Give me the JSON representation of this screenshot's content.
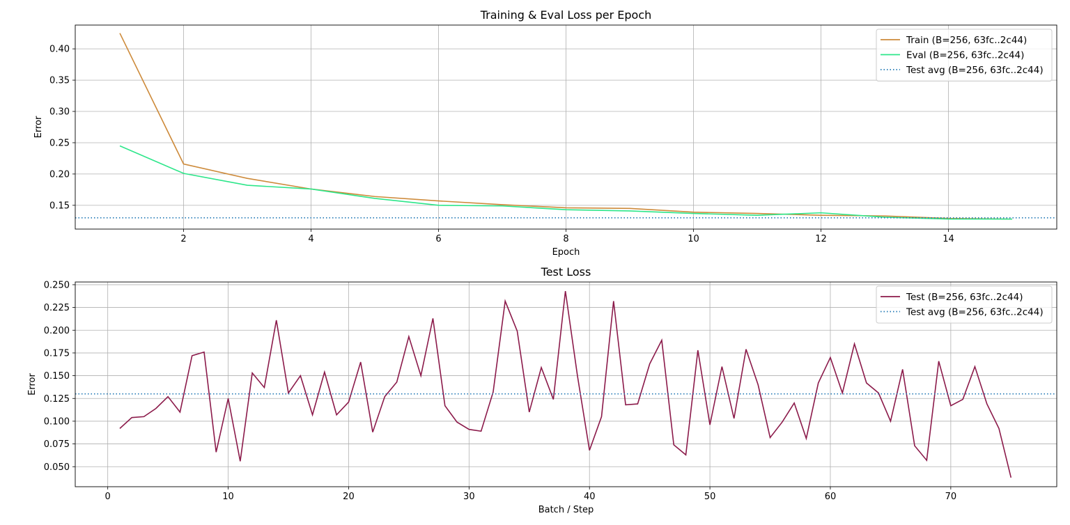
{
  "chart_data": [
    {
      "type": "line",
      "title": "Training & Eval Loss per Epoch",
      "xlabel": "Epoch",
      "ylabel": "Error",
      "xlim": [
        0.3,
        15.7
      ],
      "ylim": [
        0.112,
        0.438
      ],
      "xticks": [
        2,
        4,
        6,
        8,
        10,
        12,
        14
      ],
      "yticks": [
        0.15,
        0.2,
        0.25,
        0.3,
        0.35,
        0.4
      ],
      "ytick_decimals": 2,
      "grid": true,
      "legend": "top-right",
      "x": [
        1,
        2,
        3,
        4,
        5,
        6,
        7,
        8,
        9,
        10,
        11,
        12,
        13,
        14,
        15
      ],
      "series": [
        {
          "name": "Train (B=256, 63fc..2c44)",
          "color": "#cd8a3a",
          "style": "solid",
          "values": [
            0.425,
            0.216,
            0.193,
            0.176,
            0.164,
            0.157,
            0.151,
            0.146,
            0.145,
            0.139,
            0.137,
            0.134,
            0.133,
            0.129,
            0.128
          ]
        },
        {
          "name": "Eval (B=256, 63fc..2c44)",
          "color": "#2de68a",
          "style": "solid",
          "values": [
            0.245,
            0.201,
            0.182,
            0.176,
            0.161,
            0.15,
            0.149,
            0.143,
            0.141,
            0.137,
            0.134,
            0.138,
            0.131,
            0.128,
            0.128
          ]
        },
        {
          "name": "Test avg (B=256, 63fc..2c44)",
          "color": "#1f77b4",
          "style": "dotted",
          "hline": 0.13
        }
      ]
    },
    {
      "type": "line",
      "title": "Test Loss",
      "xlabel": "Batch / Step",
      "ylabel": "Error",
      "xlim": [
        -2.7,
        78.8
      ],
      "ylim": [
        0.028,
        0.253
      ],
      "xticks": [
        0,
        10,
        20,
        30,
        40,
        50,
        60,
        70
      ],
      "yticks": [
        0.05,
        0.075,
        0.1,
        0.125,
        0.15,
        0.175,
        0.2,
        0.225,
        0.25
      ],
      "ytick_decimals": 3,
      "grid": true,
      "legend": "top-right",
      "x": [
        1,
        2,
        3,
        4,
        5,
        6,
        7,
        8,
        9,
        10,
        11,
        12,
        13,
        14,
        15,
        16,
        17,
        18,
        19,
        20,
        21,
        22,
        23,
        24,
        25,
        26,
        27,
        28,
        29,
        30,
        31,
        32,
        33,
        34,
        35,
        36,
        37,
        38,
        39,
        40,
        41,
        42,
        43,
        44,
        45,
        46,
        47,
        48,
        49,
        50,
        51,
        52,
        53,
        54,
        55,
        56,
        57,
        58,
        59,
        60,
        61,
        62,
        63,
        64,
        65,
        66,
        67,
        68,
        69,
        70,
        71,
        72,
        73,
        74,
        75
      ],
      "series": [
        {
          "name": "Test (B=256, 63fc..2c44)",
          "color": "#8b1a4a",
          "style": "solid",
          "values": [
            0.092,
            0.104,
            0.105,
            0.114,
            0.127,
            0.11,
            0.172,
            0.176,
            0.066,
            0.125,
            0.056,
            0.153,
            0.137,
            0.211,
            0.131,
            0.15,
            0.107,
            0.154,
            0.107,
            0.121,
            0.165,
            0.088,
            0.127,
            0.143,
            0.193,
            0.15,
            0.213,
            0.117,
            0.099,
            0.091,
            0.089,
            0.132,
            0.232,
            0.199,
            0.11,
            0.159,
            0.124,
            0.243,
            0.15,
            0.068,
            0.105,
            0.232,
            0.118,
            0.119,
            0.163,
            0.189,
            0.074,
            0.063,
            0.178,
            0.096,
            0.16,
            0.103,
            0.179,
            0.14,
            0.082,
            0.099,
            0.12,
            0.081,
            0.142,
            0.17,
            0.131,
            0.185,
            0.142,
            0.131,
            0.1,
            0.157,
            0.073,
            0.057,
            0.166,
            0.117,
            0.124,
            0.16,
            0.119,
            0.092,
            0.038
          ]
        },
        {
          "name": "Test avg (B=256, 63fc..2c44)",
          "color": "#1f77b4",
          "style": "dotted",
          "hline": 0.13
        }
      ]
    }
  ]
}
